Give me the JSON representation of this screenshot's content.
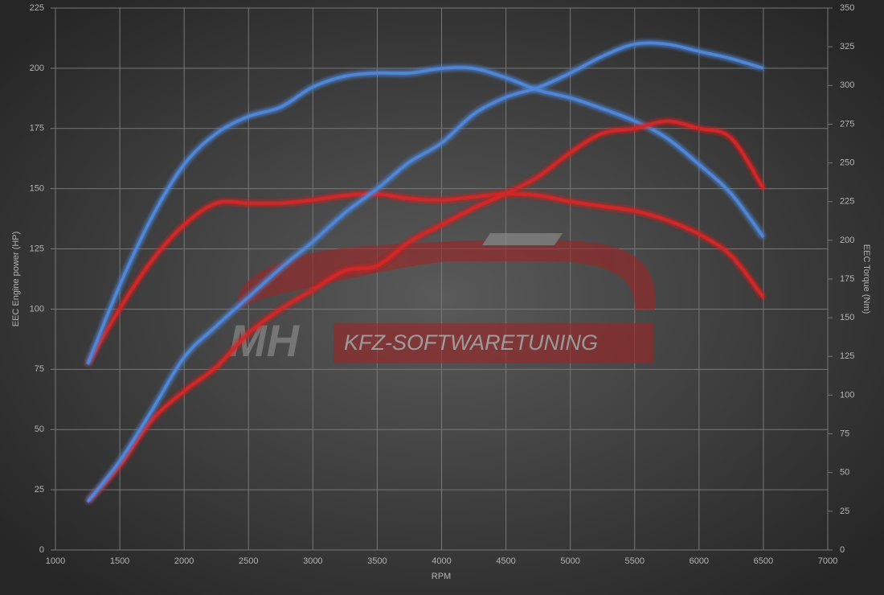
{
  "chart_data": {
    "type": "line",
    "x_label": "RPM",
    "y_label": "EEC Engine power (HP)",
    "y2_label": "EEC Torque (Nm)",
    "watermark": [
      "MH",
      "KFZ-SOFTWARETUNING"
    ],
    "x": [
      1250,
      1500,
      1750,
      2000,
      2250,
      2500,
      2750,
      3000,
      3250,
      3500,
      3750,
      4000,
      4250,
      4500,
      4750,
      5000,
      5250,
      5500,
      5750,
      6000,
      6250,
      6500
    ],
    "series": [
      {
        "color": "#4f86d8",
        "values": [
          20,
          37,
          58,
          80,
          93,
          105,
          117,
          128,
          140,
          150,
          161,
          169,
          181,
          188,
          192,
          198,
          205,
          210,
          210,
          207,
          204,
          200
        ]
      },
      {
        "color": "#d42626",
        "values": [
          20,
          35,
          54,
          66,
          76,
          90,
          100,
          108,
          116,
          118,
          128,
          135,
          142,
          148,
          155,
          165,
          173,
          175,
          178,
          175,
          171,
          150
        ]
      },
      {
        "color": "#4f86d8",
        "axis": "y2",
        "values": [
          120,
          171,
          215,
          249,
          269,
          280,
          286,
          299,
          306,
          308,
          308,
          311,
          311,
          305,
          297,
          292,
          285,
          277,
          266,
          249,
          230,
          202
        ]
      },
      {
        "color": "#d42626",
        "axis": "y2",
        "values": [
          120,
          156,
          187,
          210,
          224,
          224,
          224,
          226,
          229,
          230,
          227,
          226,
          228,
          230,
          229,
          225,
          222,
          219,
          213,
          204,
          190,
          163
        ]
      }
    ],
    "xlim": [
      1000,
      7000
    ],
    "xticks": [
      1000,
      1500,
      2000,
      2500,
      3000,
      3500,
      4000,
      4500,
      5000,
      5500,
      6000,
      6500,
      7000
    ],
    "ylim": [
      0,
      225
    ],
    "yticks": [
      0,
      25,
      50,
      75,
      100,
      125,
      150,
      175,
      200,
      225
    ],
    "y2lim": [
      0,
      350
    ],
    "y2ticks": [
      0,
      25,
      50,
      75,
      100,
      125,
      150,
      175,
      200,
      225,
      250,
      275,
      300,
      325,
      350
    ],
    "grid": true
  }
}
